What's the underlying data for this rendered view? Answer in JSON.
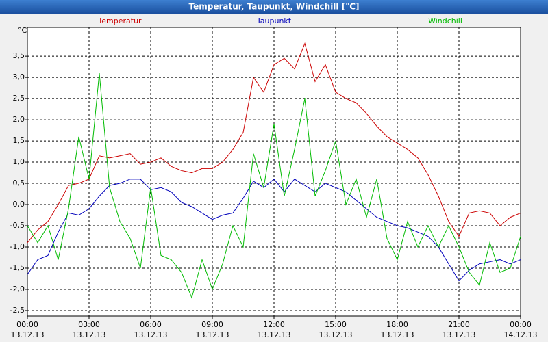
{
  "chart_data": {
    "type": "line",
    "title": "Temperatur, Taupunkt, Windchill [°C]",
    "y_unit": "°C",
    "x": [
      0,
      0.5,
      1,
      1.5,
      2,
      2.5,
      3,
      3.5,
      4,
      4.5,
      5,
      5.5,
      6,
      6.5,
      7,
      7.5,
      8,
      8.5,
      9,
      9.5,
      10,
      10.5,
      11,
      11.5,
      12,
      12.5,
      13,
      13.5,
      14,
      14.5,
      15,
      15.5,
      16,
      16.5,
      17,
      17.5,
      18,
      18.5,
      19,
      19.5,
      20,
      20.5,
      21,
      21.5,
      22,
      22.5,
      23,
      23.5,
      24
    ],
    "series": [
      {
        "name": "Temperatur",
        "color": "#cc0000",
        "values": [
          -0.9,
          -0.6,
          -0.4,
          0.0,
          0.45,
          0.5,
          0.6,
          1.15,
          1.1,
          1.15,
          1.2,
          0.95,
          1.0,
          1.1,
          0.9,
          0.8,
          0.75,
          0.85,
          0.85,
          1.0,
          1.3,
          1.7,
          3.0,
          2.65,
          3.3,
          3.45,
          3.2,
          3.8,
          2.9,
          3.3,
          2.65,
          2.5,
          2.4,
          2.15,
          1.85,
          1.6,
          1.45,
          1.3,
          1.1,
          0.7,
          0.2,
          -0.4,
          -0.75,
          -0.2,
          -0.15,
          -0.2,
          -0.5,
          -0.3,
          -0.2
        ]
      },
      {
        "name": "Taupunkt",
        "color": "#0000bb",
        "values": [
          -1.65,
          -1.3,
          -1.2,
          -0.65,
          -0.2,
          -0.25,
          -0.1,
          0.2,
          0.45,
          0.5,
          0.6,
          0.6,
          0.35,
          0.4,
          0.3,
          0.05,
          -0.05,
          -0.2,
          -0.35,
          -0.25,
          -0.2,
          0.15,
          0.55,
          0.4,
          0.6,
          0.3,
          0.6,
          0.45,
          0.3,
          0.5,
          0.4,
          0.3,
          0.1,
          -0.1,
          -0.3,
          -0.4,
          -0.5,
          -0.55,
          -0.65,
          -0.75,
          -1.0,
          -1.4,
          -1.8,
          -1.55,
          -1.4,
          -1.35,
          -1.3,
          -1.4,
          -1.3
        ]
      },
      {
        "name": "Windchill",
        "color": "#00bb00",
        "values": [
          -0.5,
          -0.9,
          -0.5,
          -1.3,
          -0.1,
          1.6,
          0.6,
          3.1,
          0.4,
          -0.4,
          -0.8,
          -1.5,
          0.4,
          -1.2,
          -1.3,
          -1.6,
          -2.2,
          -1.3,
          -2.0,
          -1.4,
          -0.5,
          -1.0,
          1.2,
          0.4,
          1.9,
          0.2,
          1.3,
          2.5,
          0.2,
          0.8,
          1.5,
          0.0,
          0.6,
          -0.3,
          0.6,
          -0.8,
          -1.3,
          -0.4,
          -1.0,
          -0.5,
          -1.0,
          -0.5,
          -1.0,
          -1.6,
          -1.9,
          -0.9,
          -1.6,
          -1.5,
          -0.75
        ]
      }
    ],
    "xlim": [
      0,
      24
    ],
    "xticks": [
      {
        "value": 0,
        "label": "00:00"
      },
      {
        "value": 3,
        "label": "03:00"
      },
      {
        "value": 6,
        "label": "06:00"
      },
      {
        "value": 9,
        "label": "09:00"
      },
      {
        "value": 12,
        "label": "12:00"
      },
      {
        "value": 15,
        "label": "15:00"
      },
      {
        "value": 18,
        "label": "18:00"
      },
      {
        "value": 21,
        "label": "21:00"
      },
      {
        "value": 24,
        "label": "00:00"
      }
    ],
    "xtick_dates": [
      "13.12.13",
      "13.12.13",
      "13.12.13",
      "13.12.13",
      "13.12.13",
      "13.12.13",
      "13.12.13",
      "13.12.13",
      "14.12.13"
    ],
    "ylim": [
      -2.63,
      4.18
    ],
    "yticks": [
      {
        "value": -2.5,
        "label": "-2,5"
      },
      {
        "value": -2,
        "label": "-2,0"
      },
      {
        "value": -1.5,
        "label": "-1,5"
      },
      {
        "value": -1,
        "label": "-1,0"
      },
      {
        "value": -0.5,
        "label": "-0,5"
      },
      {
        "value": 0,
        "label": "0,0"
      },
      {
        "value": 0.5,
        "label": "0,5"
      },
      {
        "value": 1,
        "label": "1,0"
      },
      {
        "value": 1.5,
        "label": "1,5"
      },
      {
        "value": 2,
        "label": "2,0"
      },
      {
        "value": 2.5,
        "label": "2,5"
      },
      {
        "value": 3,
        "label": "3,0"
      },
      {
        "value": 3.5,
        "label": "3,5"
      }
    ],
    "grid": true
  }
}
